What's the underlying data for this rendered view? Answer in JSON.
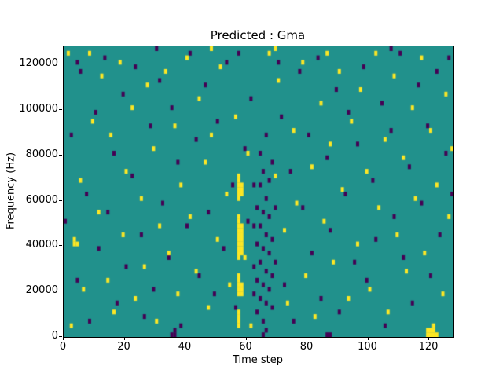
{
  "figure": {
    "title": "Predicted : Gma",
    "xlabel": "Time step",
    "ylabel": "Frequency (Hz)"
  },
  "chart_data": {
    "type": "heatmap",
    "title": "Predicted : Gma",
    "xlabel": "Time step",
    "ylabel": "Frequency (Hz)",
    "xlim": [
      0,
      128
    ],
    "ylim": [
      0,
      128000
    ],
    "x_ticks": [
      0,
      20,
      40,
      60,
      80,
      100,
      120
    ],
    "y_ticks": [
      0,
      20000,
      40000,
      60000,
      80000,
      100000,
      120000
    ],
    "grid": {
      "ncols": 128,
      "nrows": 64,
      "hz_per_row": 2000
    },
    "legend": "none",
    "colors": {
      "background_mid": "#21918c",
      "high": "#fde725",
      "low": "#440154",
      "axis": "#000000"
    },
    "yellow_cells": [
      [
        1,
        62
      ],
      [
        2,
        2
      ],
      [
        3,
        20
      ],
      [
        3,
        21
      ],
      [
        4,
        20
      ],
      [
        5,
        34
      ],
      [
        6,
        10
      ],
      [
        8,
        62
      ],
      [
        9,
        47
      ],
      [
        11,
        27
      ],
      [
        12,
        57
      ],
      [
        14,
        12
      ],
      [
        15,
        44
      ],
      [
        16,
        5
      ],
      [
        18,
        60
      ],
      [
        19,
        22
      ],
      [
        20,
        36
      ],
      [
        22,
        50
      ],
      [
        23,
        8
      ],
      [
        25,
        30
      ],
      [
        26,
        15
      ],
      [
        27,
        55
      ],
      [
        29,
        41
      ],
      [
        30,
        3
      ],
      [
        31,
        24
      ],
      [
        33,
        58
      ],
      [
        34,
        18
      ],
      [
        36,
        46
      ],
      [
        37,
        9
      ],
      [
        38,
        33
      ],
      [
        40,
        61
      ],
      [
        41,
        26
      ],
      [
        43,
        14
      ],
      [
        44,
        52
      ],
      [
        46,
        38
      ],
      [
        47,
        6
      ],
      [
        48,
        44
      ],
      [
        48,
        63
      ],
      [
        50,
        21
      ],
      [
        51,
        59
      ],
      [
        53,
        31
      ],
      [
        54,
        11
      ],
      [
        56,
        48
      ],
      [
        59,
        17
      ],
      [
        60,
        40
      ],
      [
        61,
        2
      ],
      [
        67,
        62
      ],
      [
        69,
        35
      ],
      [
        69,
        63
      ],
      [
        70,
        56
      ],
      [
        72,
        23
      ],
      [
        73,
        7
      ],
      [
        75,
        45
      ],
      [
        76,
        29
      ],
      [
        78,
        60
      ],
      [
        79,
        13
      ],
      [
        81,
        37
      ],
      [
        82,
        4
      ],
      [
        84,
        51
      ],
      [
        85,
        25
      ],
      [
        86,
        62
      ],
      [
        87,
        42
      ],
      [
        88,
        16
      ],
      [
        90,
        58
      ],
      [
        91,
        32
      ],
      [
        93,
        8
      ],
      [
        94,
        47
      ],
      [
        96,
        20
      ],
      [
        97,
        54
      ],
      [
        99,
        36
      ],
      [
        100,
        10
      ],
      [
        102,
        62
      ],
      [
        103,
        28
      ],
      [
        105,
        43
      ],
      [
        106,
        5
      ],
      [
        108,
        57
      ],
      [
        109,
        22
      ],
      [
        111,
        39
      ],
      [
        112,
        14
      ],
      [
        114,
        50
      ],
      [
        115,
        30
      ],
      [
        117,
        61
      ],
      [
        118,
        18
      ],
      [
        120,
        45
      ],
      [
        121,
        2
      ],
      [
        122,
        33
      ],
      [
        124,
        9
      ],
      [
        125,
        53
      ],
      [
        126,
        26
      ],
      [
        127,
        41
      ],
      [
        57,
        2
      ],
      [
        57,
        3
      ],
      [
        57,
        4
      ],
      [
        57,
        5
      ],
      [
        57,
        9
      ],
      [
        57,
        10
      ],
      [
        57,
        11
      ],
      [
        57,
        12
      ],
      [
        57,
        13
      ],
      [
        57,
        17
      ],
      [
        57,
        18
      ],
      [
        57,
        19
      ],
      [
        57,
        20
      ],
      [
        57,
        21
      ],
      [
        57,
        22
      ],
      [
        57,
        23
      ],
      [
        57,
        24
      ],
      [
        57,
        25
      ],
      [
        57,
        26
      ],
      [
        57,
        30
      ],
      [
        57,
        31
      ],
      [
        57,
        32
      ],
      [
        57,
        33
      ],
      [
        57,
        34
      ],
      [
        57,
        35
      ],
      [
        58,
        9
      ],
      [
        58,
        10
      ],
      [
        58,
        11
      ],
      [
        58,
        18
      ],
      [
        58,
        19
      ],
      [
        58,
        20
      ],
      [
        58,
        21
      ],
      [
        58,
        22
      ],
      [
        58,
        23
      ],
      [
        58,
        24
      ],
      [
        58,
        31
      ],
      [
        58,
        32
      ],
      [
        58,
        33
      ],
      [
        119,
        0
      ],
      [
        119,
        1
      ],
      [
        120,
        0
      ],
      [
        120,
        1
      ],
      [
        121,
        0
      ],
      [
        121,
        1
      ],
      [
        122,
        0
      ]
    ],
    "purple_cells": [
      [
        0,
        25
      ],
      [
        2,
        44
      ],
      [
        4,
        12
      ],
      [
        4,
        60
      ],
      [
        5,
        58
      ],
      [
        7,
        31
      ],
      [
        8,
        3
      ],
      [
        10,
        49
      ],
      [
        11,
        19
      ],
      [
        13,
        61
      ],
      [
        14,
        27
      ],
      [
        16,
        40
      ],
      [
        17,
        7
      ],
      [
        19,
        53
      ],
      [
        20,
        15
      ],
      [
        22,
        35
      ],
      [
        23,
        59
      ],
      [
        25,
        22
      ],
      [
        26,
        4
      ],
      [
        28,
        46
      ],
      [
        29,
        10
      ],
      [
        30,
        63
      ],
      [
        31,
        56
      ],
      [
        32,
        29
      ],
      [
        34,
        17
      ],
      [
        35,
        0
      ],
      [
        35,
        50
      ],
      [
        36,
        0
      ],
      [
        36,
        1
      ],
      [
        37,
        38
      ],
      [
        38,
        2
      ],
      [
        40,
        24
      ],
      [
        41,
        62
      ],
      [
        43,
        43
      ],
      [
        44,
        13
      ],
      [
        46,
        55
      ],
      [
        47,
        27
      ],
      [
        49,
        9
      ],
      [
        50,
        47
      ],
      [
        52,
        19
      ],
      [
        53,
        60
      ],
      [
        55,
        33
      ],
      [
        56,
        6
      ],
      [
        57,
        62
      ],
      [
        59,
        41
      ],
      [
        60,
        25
      ],
      [
        61,
        52
      ],
      [
        62,
        9
      ],
      [
        62,
        15
      ],
      [
        62,
        24
      ],
      [
        62,
        33
      ],
      [
        63,
        5
      ],
      [
        63,
        12
      ],
      [
        63,
        20
      ],
      [
        63,
        28
      ],
      [
        64,
        8
      ],
      [
        64,
        16
      ],
      [
        64,
        24
      ],
      [
        64,
        33
      ],
      [
        64,
        40
      ],
      [
        65,
        0
      ],
      [
        65,
        3
      ],
      [
        65,
        11
      ],
      [
        65,
        19
      ],
      [
        65,
        27
      ],
      [
        65,
        36
      ],
      [
        66,
        1
      ],
      [
        66,
        7
      ],
      [
        66,
        14
      ],
      [
        66,
        22
      ],
      [
        66,
        30
      ],
      [
        66,
        44
      ],
      [
        67,
        10
      ],
      [
        67,
        18
      ],
      [
        67,
        26
      ],
      [
        67,
        34
      ],
      [
        68,
        6
      ],
      [
        68,
        13
      ],
      [
        68,
        21
      ],
      [
        68,
        38
      ],
      [
        69,
        16
      ],
      [
        69,
        28
      ],
      [
        70,
        60
      ],
      [
        71,
        48
      ],
      [
        72,
        11
      ],
      [
        74,
        36
      ],
      [
        75,
        3
      ],
      [
        77,
        58
      ],
      [
        78,
        28
      ],
      [
        80,
        44
      ],
      [
        81,
        18
      ],
      [
        83,
        61
      ],
      [
        84,
        8
      ],
      [
        86,
        0
      ],
      [
        86,
        39
      ],
      [
        87,
        0
      ],
      [
        87,
        23
      ],
      [
        89,
        54
      ],
      [
        90,
        5
      ],
      [
        92,
        31
      ],
      [
        93,
        49
      ],
      [
        95,
        16
      ],
      [
        96,
        42
      ],
      [
        98,
        59
      ],
      [
        99,
        12
      ],
      [
        101,
        34
      ],
      [
        102,
        21
      ],
      [
        104,
        51
      ],
      [
        105,
        2
      ],
      [
        107,
        45
      ],
      [
        107,
        63
      ],
      [
        108,
        26
      ],
      [
        110,
        62
      ],
      [
        111,
        17
      ],
      [
        113,
        37
      ],
      [
        114,
        7
      ],
      [
        116,
        55
      ],
      [
        117,
        29
      ],
      [
        119,
        46
      ],
      [
        120,
        13
      ],
      [
        122,
        58
      ],
      [
        123,
        22
      ],
      [
        125,
        40
      ],
      [
        126,
        61
      ],
      [
        127,
        31
      ]
    ]
  }
}
